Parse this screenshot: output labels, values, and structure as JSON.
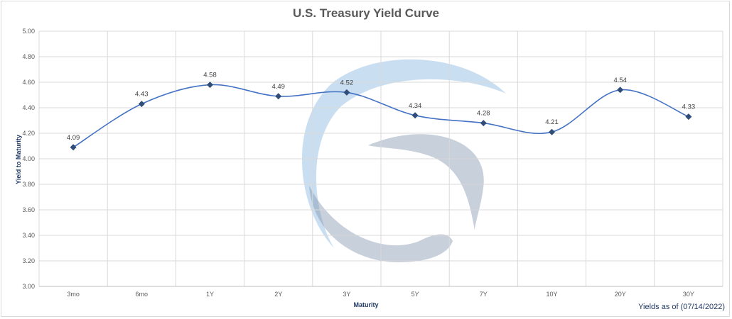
{
  "chart_data": {
    "type": "line",
    "title": "U.S. Treasury Yield Curve",
    "xlabel": "Maturity",
    "ylabel": "Yield to Maturity",
    "footnote": "Yields as of (07/14/2022)",
    "categories": [
      "3mo",
      "6mo",
      "1Y",
      "2Y",
      "3Y",
      "5Y",
      "7Y",
      "10Y",
      "20Y",
      "30Y"
    ],
    "series": [
      {
        "values": [
          4.09,
          4.43,
          4.58,
          4.49,
          4.52,
          4.34,
          4.28,
          4.21,
          4.54,
          4.33
        ]
      }
    ],
    "data_labels": [
      "4.09",
      "4.43",
      "4.58",
      "4.49",
      "4.52",
      "4.34",
      "4.28",
      "4.21",
      "4.54",
      "4.33"
    ],
    "ylim": [
      3.0,
      5.0
    ],
    "yticks": [
      "3.00",
      "3.20",
      "3.40",
      "3.60",
      "3.80",
      "4.00",
      "4.20",
      "4.40",
      "4.60",
      "4.80",
      "5.00"
    ],
    "grid": true,
    "legend": "none",
    "colors": {
      "line": "#4472c4",
      "marker": "#2f4d78",
      "grid": "#d9d9d9",
      "watermark_blue": "#9dc3e6",
      "watermark_gray": "#8497b0"
    }
  }
}
